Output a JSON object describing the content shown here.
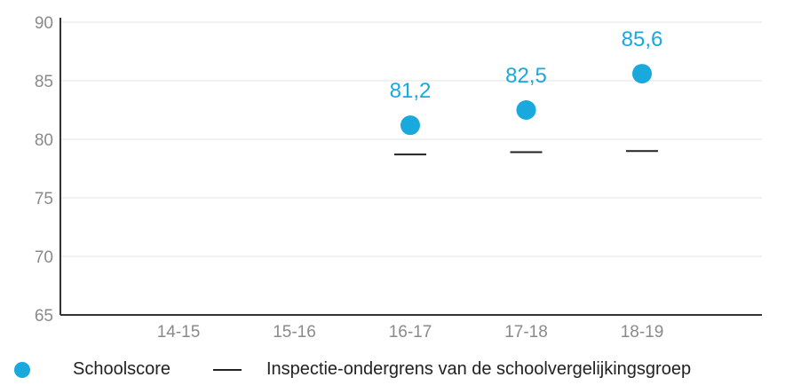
{
  "chart_data": {
    "type": "scatter",
    "categories": [
      "14-15",
      "15-16",
      "16-17",
      "17-18",
      "18-19"
    ],
    "series": [
      {
        "name": "Schoolscore",
        "values": [
          null,
          null,
          81.2,
          82.5,
          85.6
        ],
        "labels": [
          null,
          null,
          "81,2",
          "82,5",
          "85,6"
        ],
        "color": "#19a9dd",
        "marker": "circle"
      },
      {
        "name": "Inspectie-ondergrens van de schoolvergelijkingsgroep",
        "values": [
          null,
          null,
          78.7,
          78.9,
          79.0
        ],
        "color": "#222222",
        "marker": "dash"
      }
    ],
    "y_ticks": [
      "90",
      "85",
      "80",
      "75",
      "70",
      "65"
    ],
    "ylim": [
      65,
      90
    ],
    "grid": true,
    "legend_position": "bottom-left"
  },
  "legend": {
    "score_label": "Schoolscore",
    "threshold_label": "Inspectie-ondergrens van de schoolvergelijkingsgroep"
  }
}
